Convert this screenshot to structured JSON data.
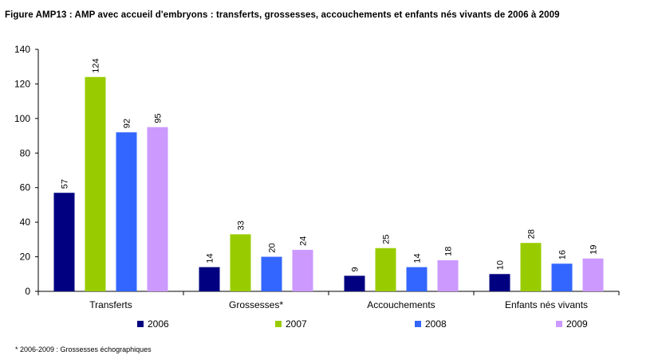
{
  "title": "Figure AMP13 : AMP avec accueil d'embryons : transferts, grossesses, accouchements et enfants nés vivants de 2006 à 2009",
  "footnote": "* 2006-2009 : Grossesses échographiques",
  "chart_data": {
    "type": "bar",
    "categories": [
      "Transferts",
      "Grossesses*",
      "Accouchements",
      "Enfants nés vivants"
    ],
    "series": [
      {
        "name": "2006",
        "color": "#000080",
        "values": [
          57,
          14,
          9,
          10
        ]
      },
      {
        "name": "2007",
        "color": "#99CC00",
        "values": [
          124,
          33,
          25,
          28
        ]
      },
      {
        "name": "2008",
        "color": "#3366FF",
        "values": [
          92,
          20,
          14,
          16
        ]
      },
      {
        "name": "2009",
        "color": "#CC99FF",
        "values": [
          95,
          24,
          18,
          19
        ]
      }
    ],
    "ylim": [
      0,
      140
    ],
    "yticks": [
      "0",
      "20",
      "40",
      "60",
      "80",
      "100",
      "120",
      "140"
    ],
    "grid": false,
    "legend_position": "bottom",
    "data_labels": true
  }
}
